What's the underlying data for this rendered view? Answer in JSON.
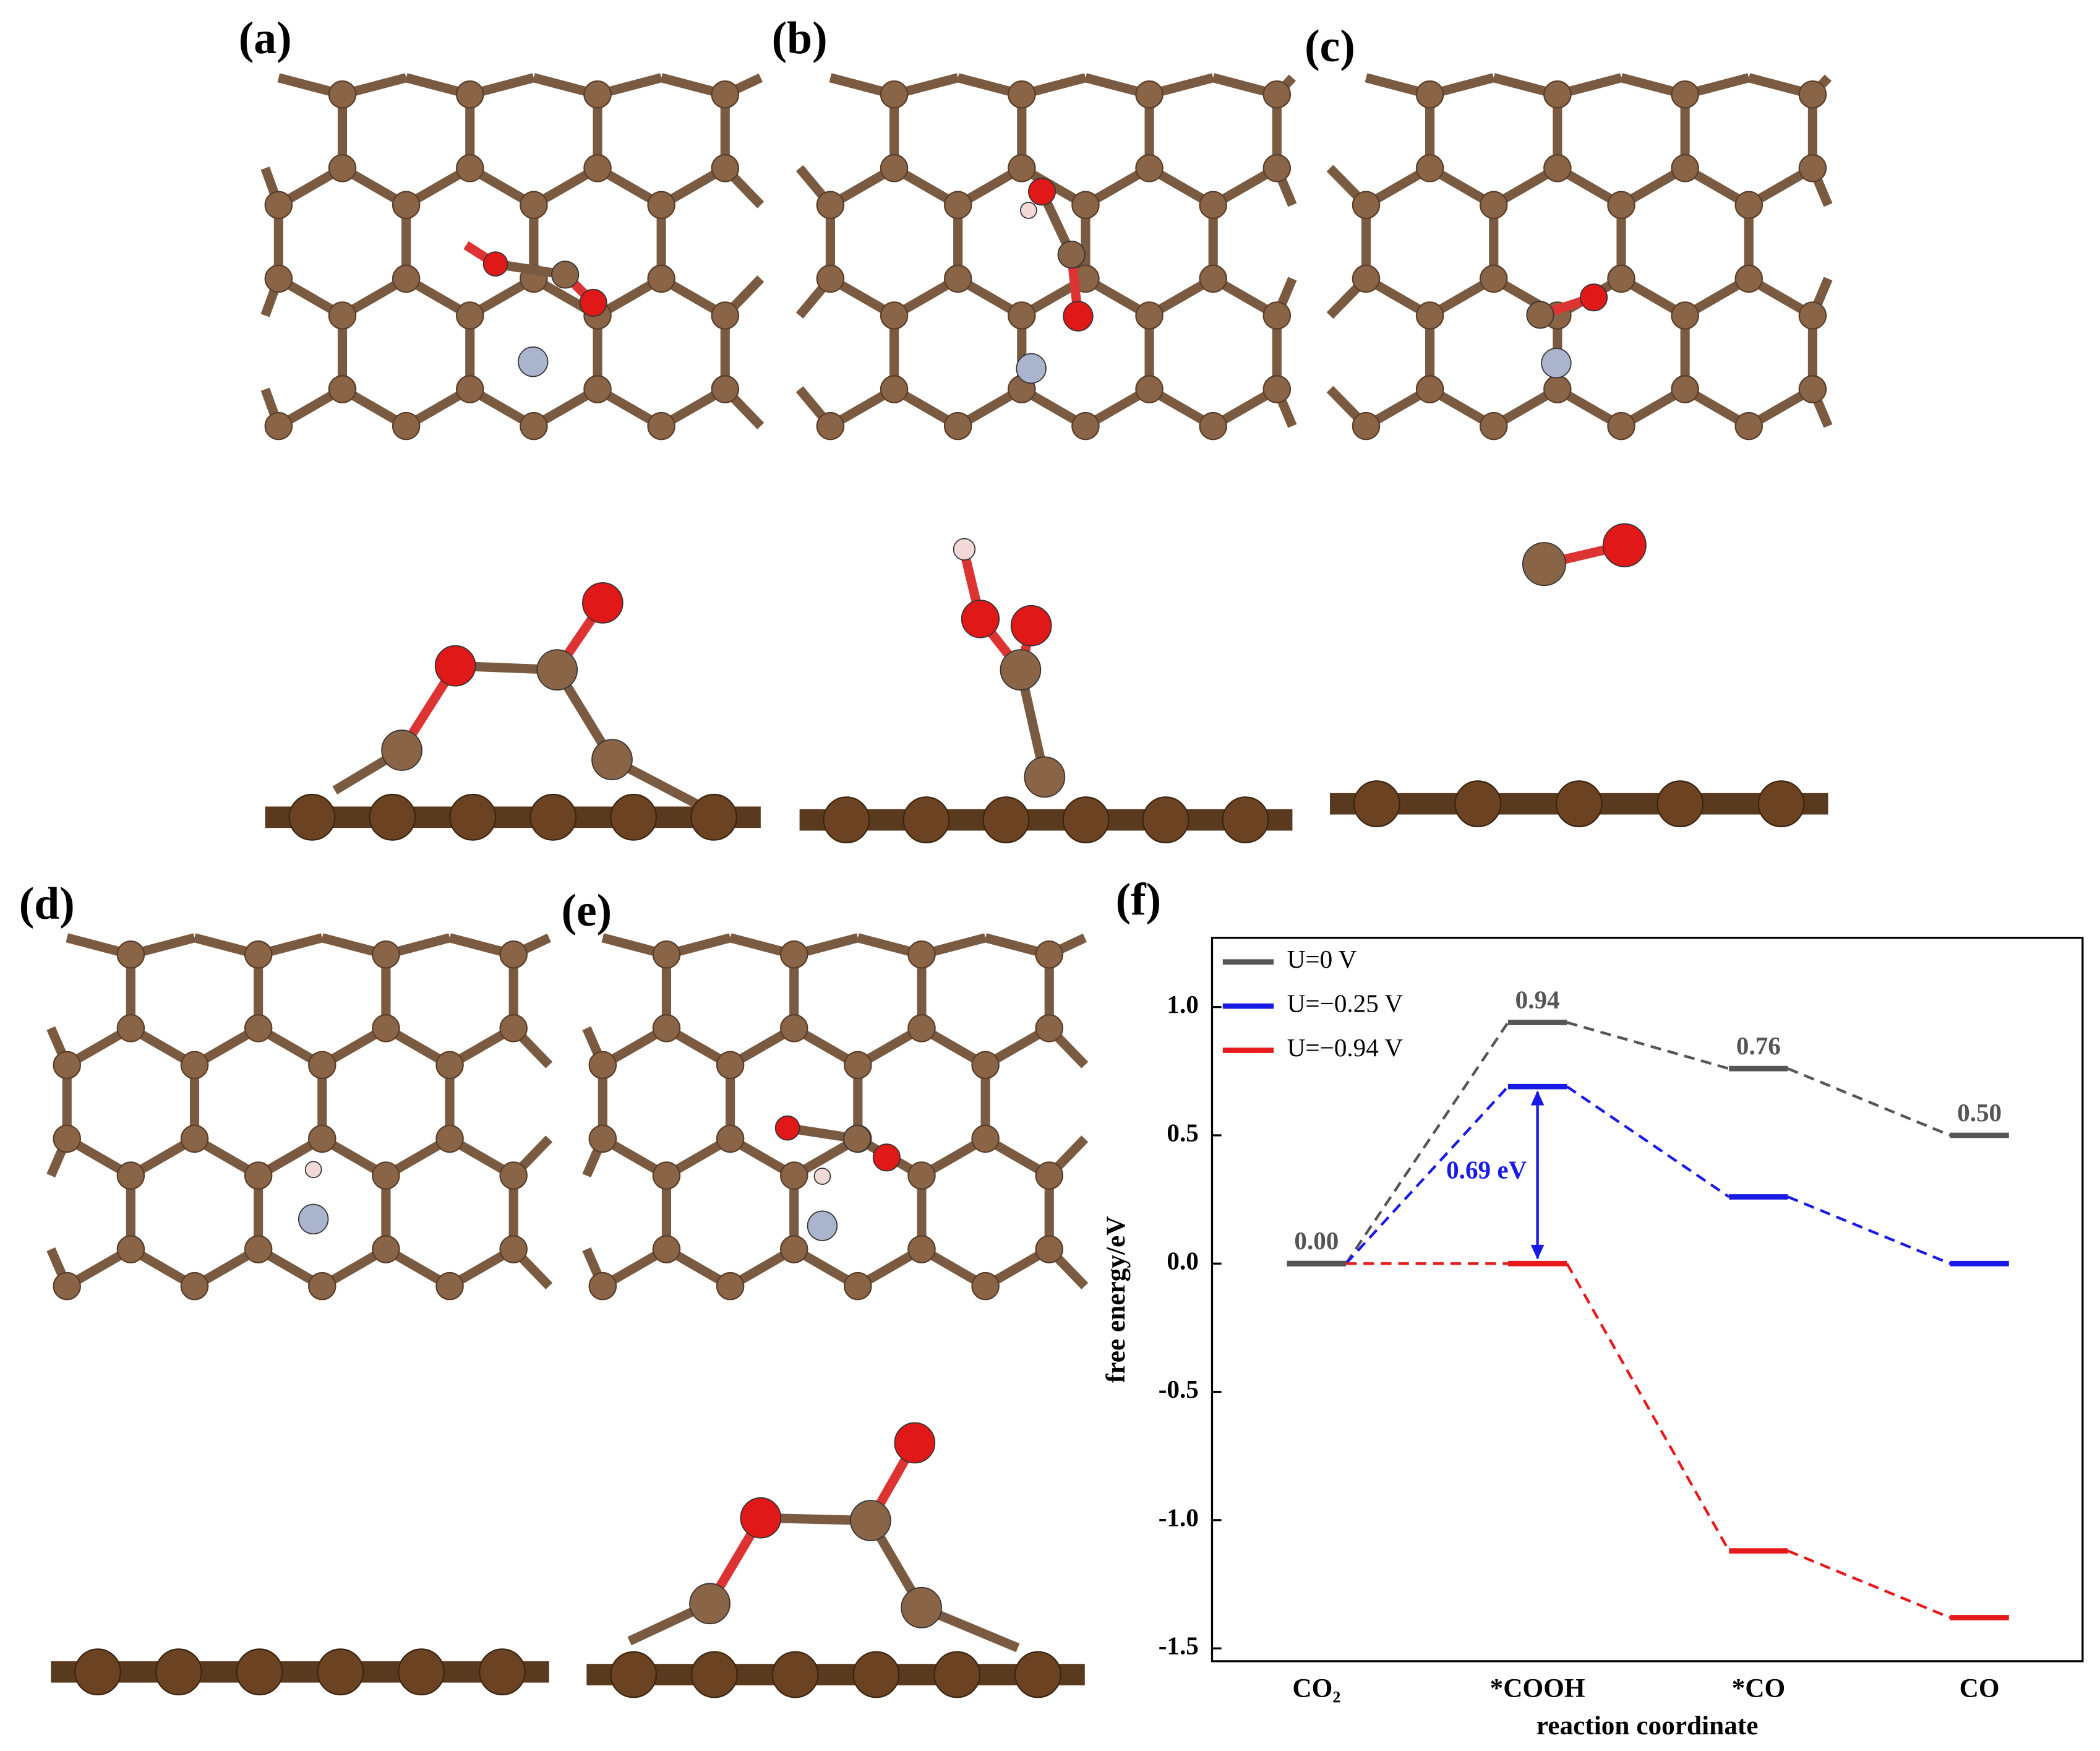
{
  "panels": [
    "(a)",
    "(b)",
    "(c)",
    "(d)",
    "(e)",
    "(f)"
  ],
  "chart_data": {
    "type": "energy-levels",
    "ylabel": "free energy/eV",
    "xlabel": "reaction coordinate",
    "categories": [
      "CO₂",
      "*COOH",
      "*CO",
      "CO"
    ],
    "series": [
      {
        "name": "U=0 V",
        "color": "#555555",
        "values": [
          0,
          0.94,
          0.76,
          0.5
        ],
        "value_labels": [
          "0.00",
          "0.94",
          "0.76",
          "0.50"
        ]
      },
      {
        "name": "U=−0.25 V",
        "color": "#1a1ae6",
        "values": [
          0,
          0.69,
          0.26,
          0
        ]
      },
      {
        "name": "U=−0.94 V",
        "color": "#e61a1a",
        "values": [
          0,
          0,
          -1.12,
          -1.38
        ]
      }
    ],
    "annotation": "0.69 eV",
    "ylim": [
      -1.55,
      1.27
    ],
    "yticks": [
      {
        "value": -1.5,
        "label": "-1.5"
      },
      {
        "value": -1.0,
        "label": "-1.0"
      },
      -0.5,
      {
        "value": 0,
        "label": "0.0"
      },
      0.5,
      {
        "value": 1.0,
        "label": "1.0"
      }
    ],
    "legend": "upper left"
  }
}
